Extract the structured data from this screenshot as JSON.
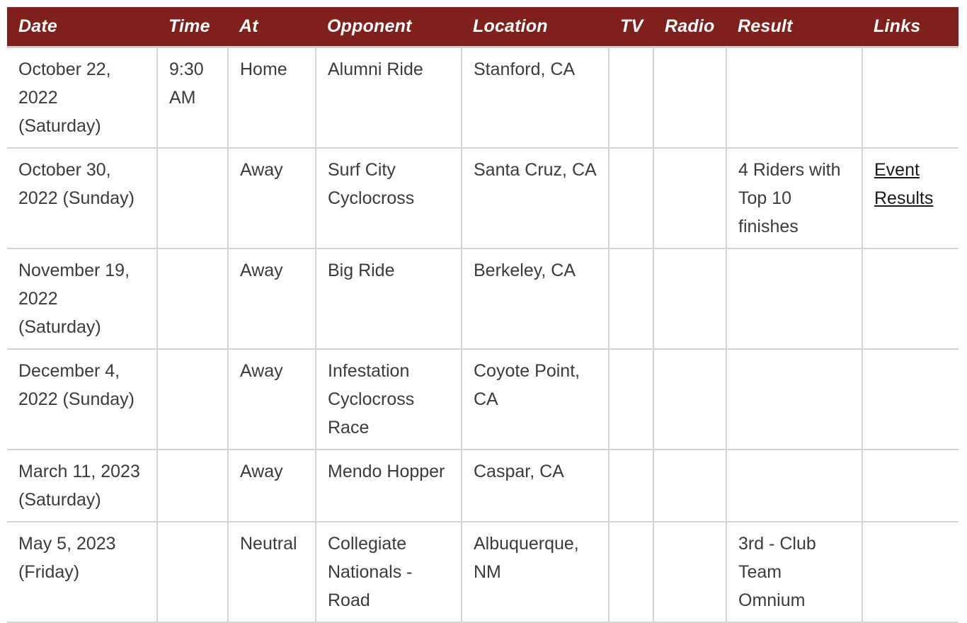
{
  "schedule": {
    "headers": {
      "date": "Date",
      "time": "Time",
      "at": "At",
      "opponent": "Opponent",
      "location": "Location",
      "tv": "TV",
      "radio": "Radio",
      "result": "Result",
      "links": "Links"
    },
    "rows": [
      {
        "date": "October 22, 2022 (Saturday)",
        "time": "9:30 AM",
        "at": "Home",
        "opponent": "Alumni Ride",
        "location": "Stanford, CA",
        "tv": "",
        "radio": "",
        "result": "",
        "links": ""
      },
      {
        "date": "October 30, 2022 (Sunday)",
        "time": "",
        "at": "Away",
        "opponent": "Surf City Cyclocross",
        "location": "Santa Cruz, CA",
        "tv": "",
        "radio": "",
        "result": "4 Riders with Top 10 finishes",
        "links": "Event Results"
      },
      {
        "date": "November 19, 2022 (Saturday)",
        "time": "",
        "at": "Away",
        "opponent": "Big Ride",
        "location": "Berkeley, CA",
        "tv": "",
        "radio": "",
        "result": "",
        "links": ""
      },
      {
        "date": "December 4, 2022 (Sunday)",
        "time": "",
        "at": "Away",
        "opponent": "Infestation Cyclocross Race",
        "location": "Coyote Point, CA",
        "tv": "",
        "radio": "",
        "result": "",
        "links": ""
      },
      {
        "date": "March 11, 2023 (Saturday)",
        "time": "",
        "at": "Away",
        "opponent": "Mendo Hopper",
        "location": "Caspar, CA",
        "tv": "",
        "radio": "",
        "result": "",
        "links": ""
      },
      {
        "date": "May 5, 2023 (Friday)",
        "time": "",
        "at": "Neutral",
        "opponent": "Collegiate Nationals - Road",
        "location": "Albuquerque, NM",
        "tv": "",
        "radio": "",
        "result": "3rd - Club Team Omnium",
        "links": ""
      }
    ]
  },
  "colors": {
    "header_bg": "#80201c",
    "header_text": "#ffffff",
    "body_text": "#3b3b3b",
    "grid_line": "#d4d4d4"
  }
}
